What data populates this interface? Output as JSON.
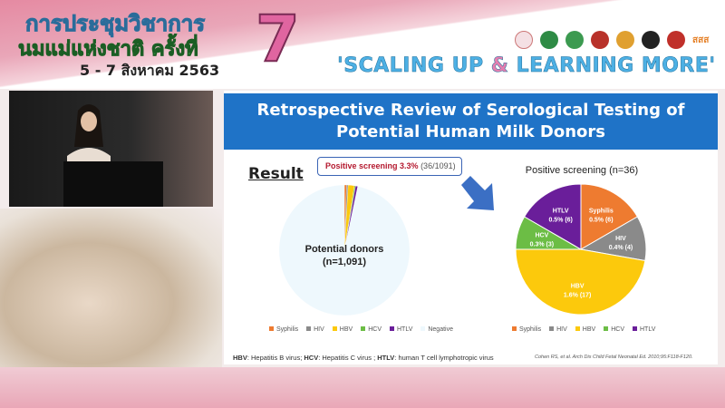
{
  "header": {
    "thai_line1": "การประชุมวิชาการ",
    "thai_line2": "นมแม่แห่งชาติ ครั้งที่",
    "thai_date": "5 - 7 สิงหาคม 2563",
    "edition": "7",
    "slogan_a": "'SCALING UP ",
    "slogan_amp": "&",
    "slogan_b": " LEARNING MORE'",
    "logos_text": "สสส"
  },
  "slide": {
    "title_line1": "Retrospective Review of Serological Testing of",
    "title_line2": "Potential Human Milk Donors",
    "result_heading": "Result",
    "callout_bold": "Positive screening 3.3%",
    "callout_rest": "(36/1091)",
    "footnote": [
      {
        "abbr": "HBV",
        "text": ": Hepatitis B virus; "
      },
      {
        "abbr": "HCV",
        "text": ": Hepatitis C virus ; "
      },
      {
        "abbr": "HTLV",
        "text": ": human T cell lymphotropic virus"
      }
    ],
    "citation": "Cohen RS, et al. Arch Dis Child Fetal Neonatal Ed. 2010;95:F118-F120."
  },
  "colors": {
    "Syphilis": "#ee7b30",
    "HIV": "#8a8a8a",
    "HBV": "#fcc90c",
    "HCV": "#6cbd45",
    "HTLV": "#6a1e9a",
    "Negative": "#eef8fd",
    "title_band": "#1f73c7",
    "arrow": "#3b6fc4"
  },
  "chart_data": [
    {
      "type": "pie",
      "center_label_line1": "Potential donors",
      "center_label_line2": "(n=1,091)",
      "categories": [
        "Syphilis",
        "HIV",
        "HBV",
        "HCV",
        "HTLV",
        "Negative"
      ],
      "values": [
        6,
        4,
        17,
        3,
        6,
        1055
      ],
      "legend": [
        "Syphilis",
        "HIV",
        "HBV",
        "HCV",
        "HTLV",
        "Negative"
      ],
      "legend_position": "bottom"
    },
    {
      "type": "pie",
      "title": "Positive screening (n=36)",
      "categories": [
        "Syphilis",
        "HIV",
        "HBV",
        "HCV",
        "HTLV"
      ],
      "values": [
        6,
        4,
        17,
        3,
        6
      ],
      "data_labels": [
        [
          "Syphilis",
          "0.5% (6)"
        ],
        [
          "HIV",
          "0.4% (4)"
        ],
        [
          "HBV",
          "1.6% (17)"
        ],
        [
          "HCV",
          "0.3% (3)"
        ],
        [
          "HTLV",
          "0.5% (6)"
        ]
      ],
      "legend": [
        "Syphilis",
        "HIV",
        "HBV",
        "HCV",
        "HTLV"
      ],
      "legend_position": "bottom"
    }
  ]
}
